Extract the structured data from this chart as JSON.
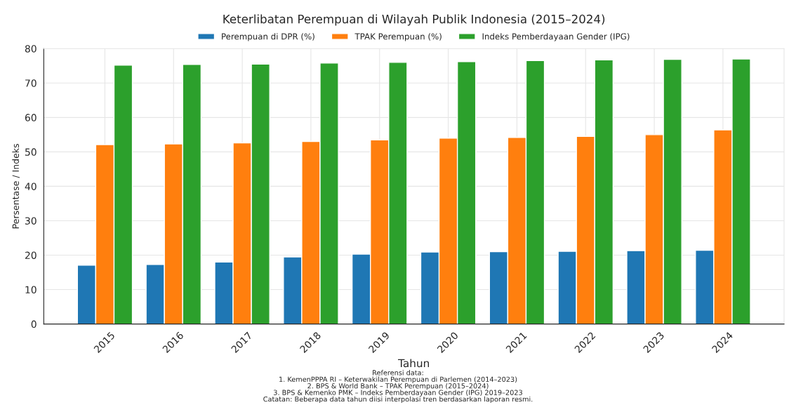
{
  "chart_data": {
    "type": "bar",
    "title": "Keterlibatan Perempuan di Wilayah Publik Indonesia (2015–2024)",
    "xlabel": "Tahun",
    "ylabel": "Persentase / Indeks",
    "categories": [
      "2015",
      "2016",
      "2017",
      "2018",
      "2019",
      "2020",
      "2021",
      "2022",
      "2023",
      "2024"
    ],
    "series": [
      {
        "name": "Perempuan di DPR (%)",
        "color": "#1f77b4",
        "values": [
          17.1,
          17.3,
          18.0,
          19.5,
          20.3,
          20.9,
          21.0,
          21.1,
          21.3,
          21.4
        ]
      },
      {
        "name": "TPAK Perempuan (%)",
        "color": "#ff7f0e",
        "values": [
          52.1,
          52.3,
          52.6,
          53.0,
          53.5,
          54.0,
          54.2,
          54.5,
          55.0,
          56.4
        ]
      },
      {
        "name": "Indeks Pemberdayaan Gender (IPG)",
        "color": "#2ca02c",
        "values": [
          75.2,
          75.4,
          75.5,
          75.8,
          76.0,
          76.2,
          76.5,
          76.7,
          76.9,
          77.0
        ]
      }
    ],
    "ylim": [
      0,
      80
    ],
    "yticks": [
      0,
      10,
      20,
      30,
      40,
      50,
      60,
      70,
      80
    ],
    "grid": true,
    "legend": "top",
    "annotations": [
      "Referensi data:\n1. KemenPPPA RI – Keterwakilan Perempuan di Parlemen (2014–2023)\n2. BPS & World Bank – TPAK Perempuan (2015–2024)\n3. BPS & Kemenko PMK – Indeks Pemberdayaan Gender (IPG) 2019–2023\nCatatan: Beberapa data tahun diisi interpolasi tren berdasarkan laporan resmi."
    ]
  }
}
